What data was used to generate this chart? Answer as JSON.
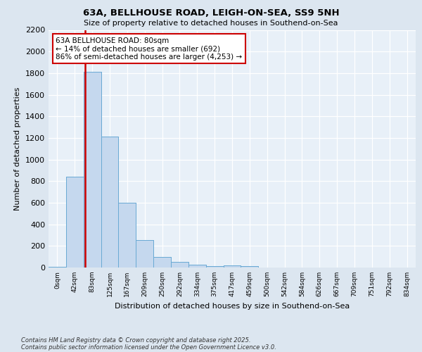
{
  "title1": "63A, BELLHOUSE ROAD, LEIGH-ON-SEA, SS9 5NH",
  "title2": "Size of property relative to detached houses in Southend-on-Sea",
  "xlabel": "Distribution of detached houses by size in Southend-on-Sea",
  "ylabel": "Number of detached properties",
  "bar_labels": [
    "0sqm",
    "42sqm",
    "83sqm",
    "125sqm",
    "167sqm",
    "209sqm",
    "250sqm",
    "292sqm",
    "334sqm",
    "375sqm",
    "417sqm",
    "459sqm",
    "500sqm",
    "542sqm",
    "584sqm",
    "626sqm",
    "667sqm",
    "709sqm",
    "751sqm",
    "792sqm",
    "834sqm"
  ],
  "bar_values": [
    5,
    840,
    1810,
    1210,
    600,
    255,
    100,
    50,
    25,
    15,
    20,
    10,
    0,
    0,
    0,
    0,
    0,
    0,
    0,
    0,
    0
  ],
  "bar_color": "#c5d8ee",
  "bar_edge_color": "#6aaad4",
  "vline_color": "#cc0000",
  "annotation_text": "63A BELLHOUSE ROAD: 80sqm\n← 14% of detached houses are smaller (692)\n86% of semi-detached houses are larger (4,253) →",
  "annotation_box_color": "#ffffff",
  "annotation_box_edge": "#cc0000",
  "ylim": [
    0,
    2200
  ],
  "yticks": [
    0,
    200,
    400,
    600,
    800,
    1000,
    1200,
    1400,
    1600,
    1800,
    2000,
    2200
  ],
  "bg_color": "#dce6f0",
  "plot_bg": "#e8f0f8",
  "grid_color": "#c0cfe0",
  "footer1": "Contains HM Land Registry data © Crown copyright and database right 2025.",
  "footer2": "Contains public sector information licensed under the Open Government Licence v3.0."
}
